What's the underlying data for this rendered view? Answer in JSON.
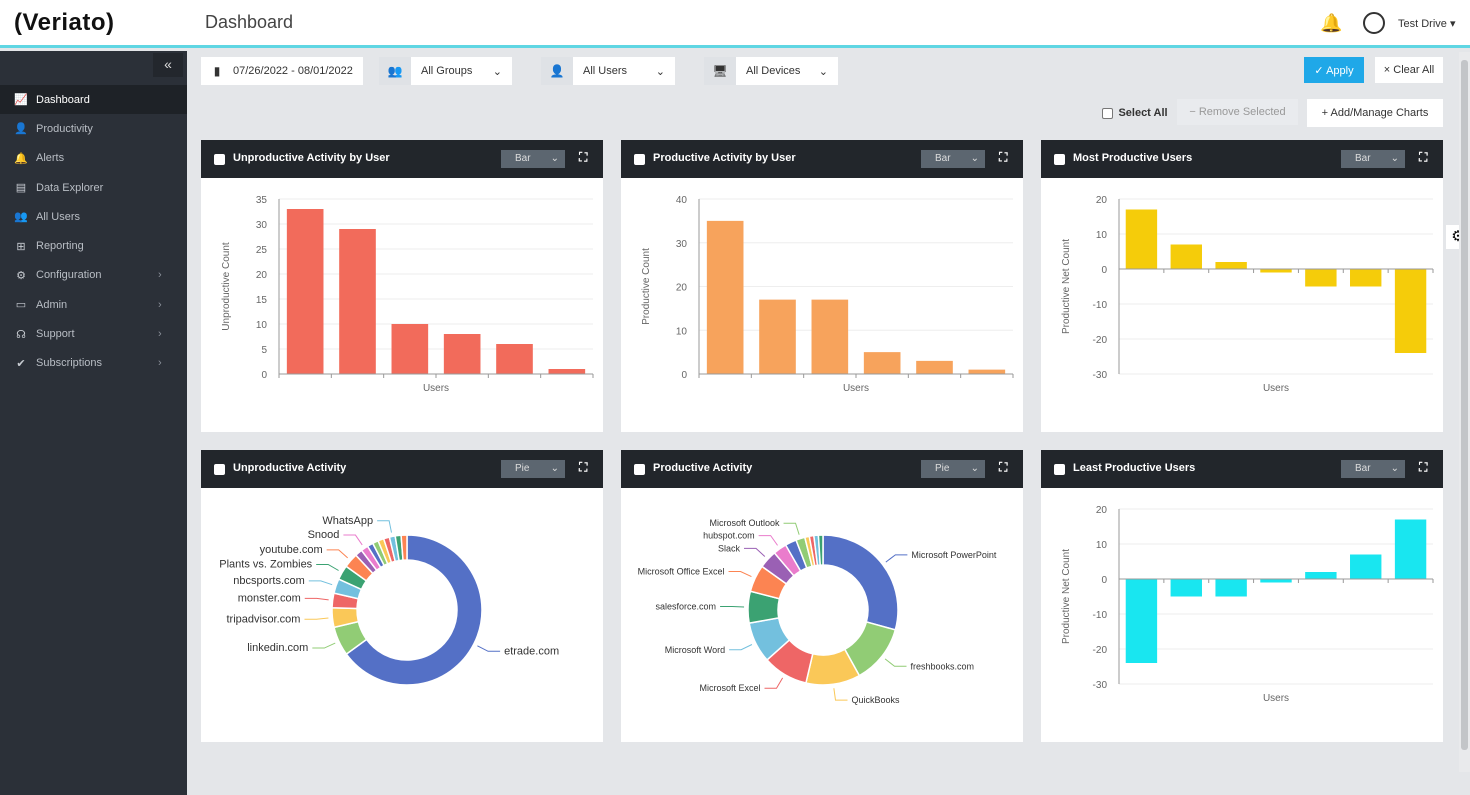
{
  "header": {
    "logo": "(Veriato)",
    "title": "Dashboard",
    "user": "Test Drive ▾",
    "accent": "#5fd6e3"
  },
  "sidebar": {
    "collapse": "«",
    "items": [
      {
        "label": "Dashboard",
        "icon": "chart-line-icon",
        "glyph": "📈",
        "active": true
      },
      {
        "label": "Productivity",
        "icon": "user-cog-icon",
        "glyph": "👤"
      },
      {
        "label": "Alerts",
        "icon": "bell-icon",
        "glyph": "🔔"
      },
      {
        "label": "Data Explorer",
        "icon": "table-icon",
        "glyph": "▤"
      },
      {
        "label": "All Users",
        "icon": "users-icon",
        "glyph": "👥"
      },
      {
        "label": "Reporting",
        "icon": "grid-icon",
        "glyph": "⊞"
      },
      {
        "label": "Configuration",
        "icon": "gear-icon",
        "glyph": "⚙",
        "chevron": "›"
      },
      {
        "label": "Admin",
        "icon": "monitor-icon",
        "glyph": "▭",
        "chevron": "›"
      },
      {
        "label": "Support",
        "icon": "headset-icon",
        "glyph": "☊",
        "chevron": "›"
      },
      {
        "label": "Subscriptions",
        "icon": "check-circle-icon",
        "glyph": "✔",
        "chevron": "›"
      }
    ]
  },
  "filters": {
    "date": "07/26/2022 - 08/01/2022",
    "groups": "All Groups",
    "users": "All Users",
    "devices": "All Devices"
  },
  "toolbar": {
    "apply": "✓ Apply",
    "clear": "× Clear All",
    "select_all": "Select All",
    "remove": "−  Remove Selected",
    "add": "+  Add/Manage Charts",
    "apply_color": "#1fa8e8"
  },
  "panels": [
    {
      "title": "Unproductive Activity by User",
      "view": "Bar"
    },
    {
      "title": "Productive Activity by User",
      "view": "Bar"
    },
    {
      "title": "Most Productive Users",
      "view": "Bar"
    },
    {
      "title": "Unproductive Activity",
      "view": "Pie"
    },
    {
      "title": "Productive Activity",
      "view": "Pie"
    },
    {
      "title": "Least Productive Users",
      "view": "Bar"
    }
  ],
  "chart_data": [
    {
      "type": "bar",
      "xlabel": "Users",
      "ylabel": "Unproductive Count",
      "ylim": [
        0,
        35
      ],
      "ticks": [
        0,
        5,
        10,
        15,
        20,
        25,
        30,
        35
      ],
      "values": [
        33,
        29,
        10,
        8,
        6,
        1
      ],
      "color": "#f26b5b"
    },
    {
      "type": "bar",
      "xlabel": "Users",
      "ylabel": "Productive Count",
      "ylim": [
        0,
        40
      ],
      "ticks": [
        0,
        10,
        20,
        30,
        40
      ],
      "values": [
        35,
        17,
        17,
        5,
        3,
        1
      ],
      "color": "#f7a35c"
    },
    {
      "type": "bar",
      "xlabel": "Users",
      "ylabel": "Productive Net Count",
      "ylim": [
        -30,
        20
      ],
      "ticks": [
        -30,
        -20,
        -10,
        0,
        10,
        20
      ],
      "values": [
        17,
        7,
        2,
        -1,
        -5,
        -5,
        -24
      ],
      "color": "#f5cc0a"
    },
    {
      "type": "pie",
      "donut": true,
      "slices": [
        {
          "label": "etrade.com",
          "value": 62,
          "color": "#5470c6"
        },
        {
          "label": "linkedin.com",
          "value": 6,
          "color": "#91cc75"
        },
        {
          "label": "tripadvisor.com",
          "value": 4,
          "color": "#fac858"
        },
        {
          "label": "monster.com",
          "value": 3,
          "color": "#ee6666"
        },
        {
          "label": "nbcsports.com",
          "value": 3,
          "color": "#73c0de"
        },
        {
          "label": "Plants vs. Zombies",
          "value": 3,
          "color": "#3ba272"
        },
        {
          "label": "youtube.com",
          "value": 3,
          "color": "#fc8452"
        },
        {
          "label": "",
          "value": 1.5,
          "color": "#9a60b4"
        },
        {
          "label": "Snood",
          "value": 1.5,
          "color": "#ea7ccc"
        },
        {
          "label": "",
          "value": 1.2,
          "color": "#5470c6"
        },
        {
          "label": "",
          "value": 1.2,
          "color": "#91cc75"
        },
        {
          "label": "",
          "value": 1.2,
          "color": "#fac858"
        },
        {
          "label": "",
          "value": 1.2,
          "color": "#ee6666"
        },
        {
          "label": "WhatsApp",
          "value": 1.2,
          "color": "#73c0de"
        },
        {
          "label": "",
          "value": 1.2,
          "color": "#3ba272"
        },
        {
          "label": "",
          "value": 1.2,
          "color": "#fc8452"
        }
      ]
    },
    {
      "type": "pie",
      "donut": true,
      "slices": [
        {
          "label": "Microsoft PowerPoint",
          "value": 30,
          "color": "#5470c6"
        },
        {
          "label": "freshbooks.com",
          "value": 13,
          "color": "#91cc75"
        },
        {
          "label": "QuickBooks",
          "value": 12,
          "color": "#fac858"
        },
        {
          "label": "Microsoft Excel",
          "value": 10,
          "color": "#ee6666"
        },
        {
          "label": "Microsoft Word",
          "value": 9,
          "color": "#73c0de"
        },
        {
          "label": "salesforce.com",
          "value": 7,
          "color": "#3ba272"
        },
        {
          "label": "Microsoft Office Excel",
          "value": 6,
          "color": "#fc8452"
        },
        {
          "label": "Slack",
          "value": 4,
          "color": "#9a60b4"
        },
        {
          "label": "hubspot.com",
          "value": 3,
          "color": "#ea7ccc"
        },
        {
          "label": "",
          "value": 2.5,
          "color": "#5470c6"
        },
        {
          "label": "Microsoft Outlook",
          "value": 2,
          "color": "#91cc75"
        },
        {
          "label": "",
          "value": 1,
          "color": "#fac858"
        },
        {
          "label": "",
          "value": 1,
          "color": "#ee6666"
        },
        {
          "label": "",
          "value": 1,
          "color": "#73c0de"
        },
        {
          "label": "",
          "value": 1,
          "color": "#3ba272"
        }
      ]
    },
    {
      "type": "bar",
      "xlabel": "Users",
      "ylabel": "Productive Net Count",
      "ylim": [
        -30,
        20
      ],
      "ticks": [
        -30,
        -20,
        -10,
        0,
        10,
        20
      ],
      "values": [
        -24,
        -5,
        -5,
        -1,
        2,
        7,
        17
      ],
      "color": "#19e6f0"
    }
  ]
}
